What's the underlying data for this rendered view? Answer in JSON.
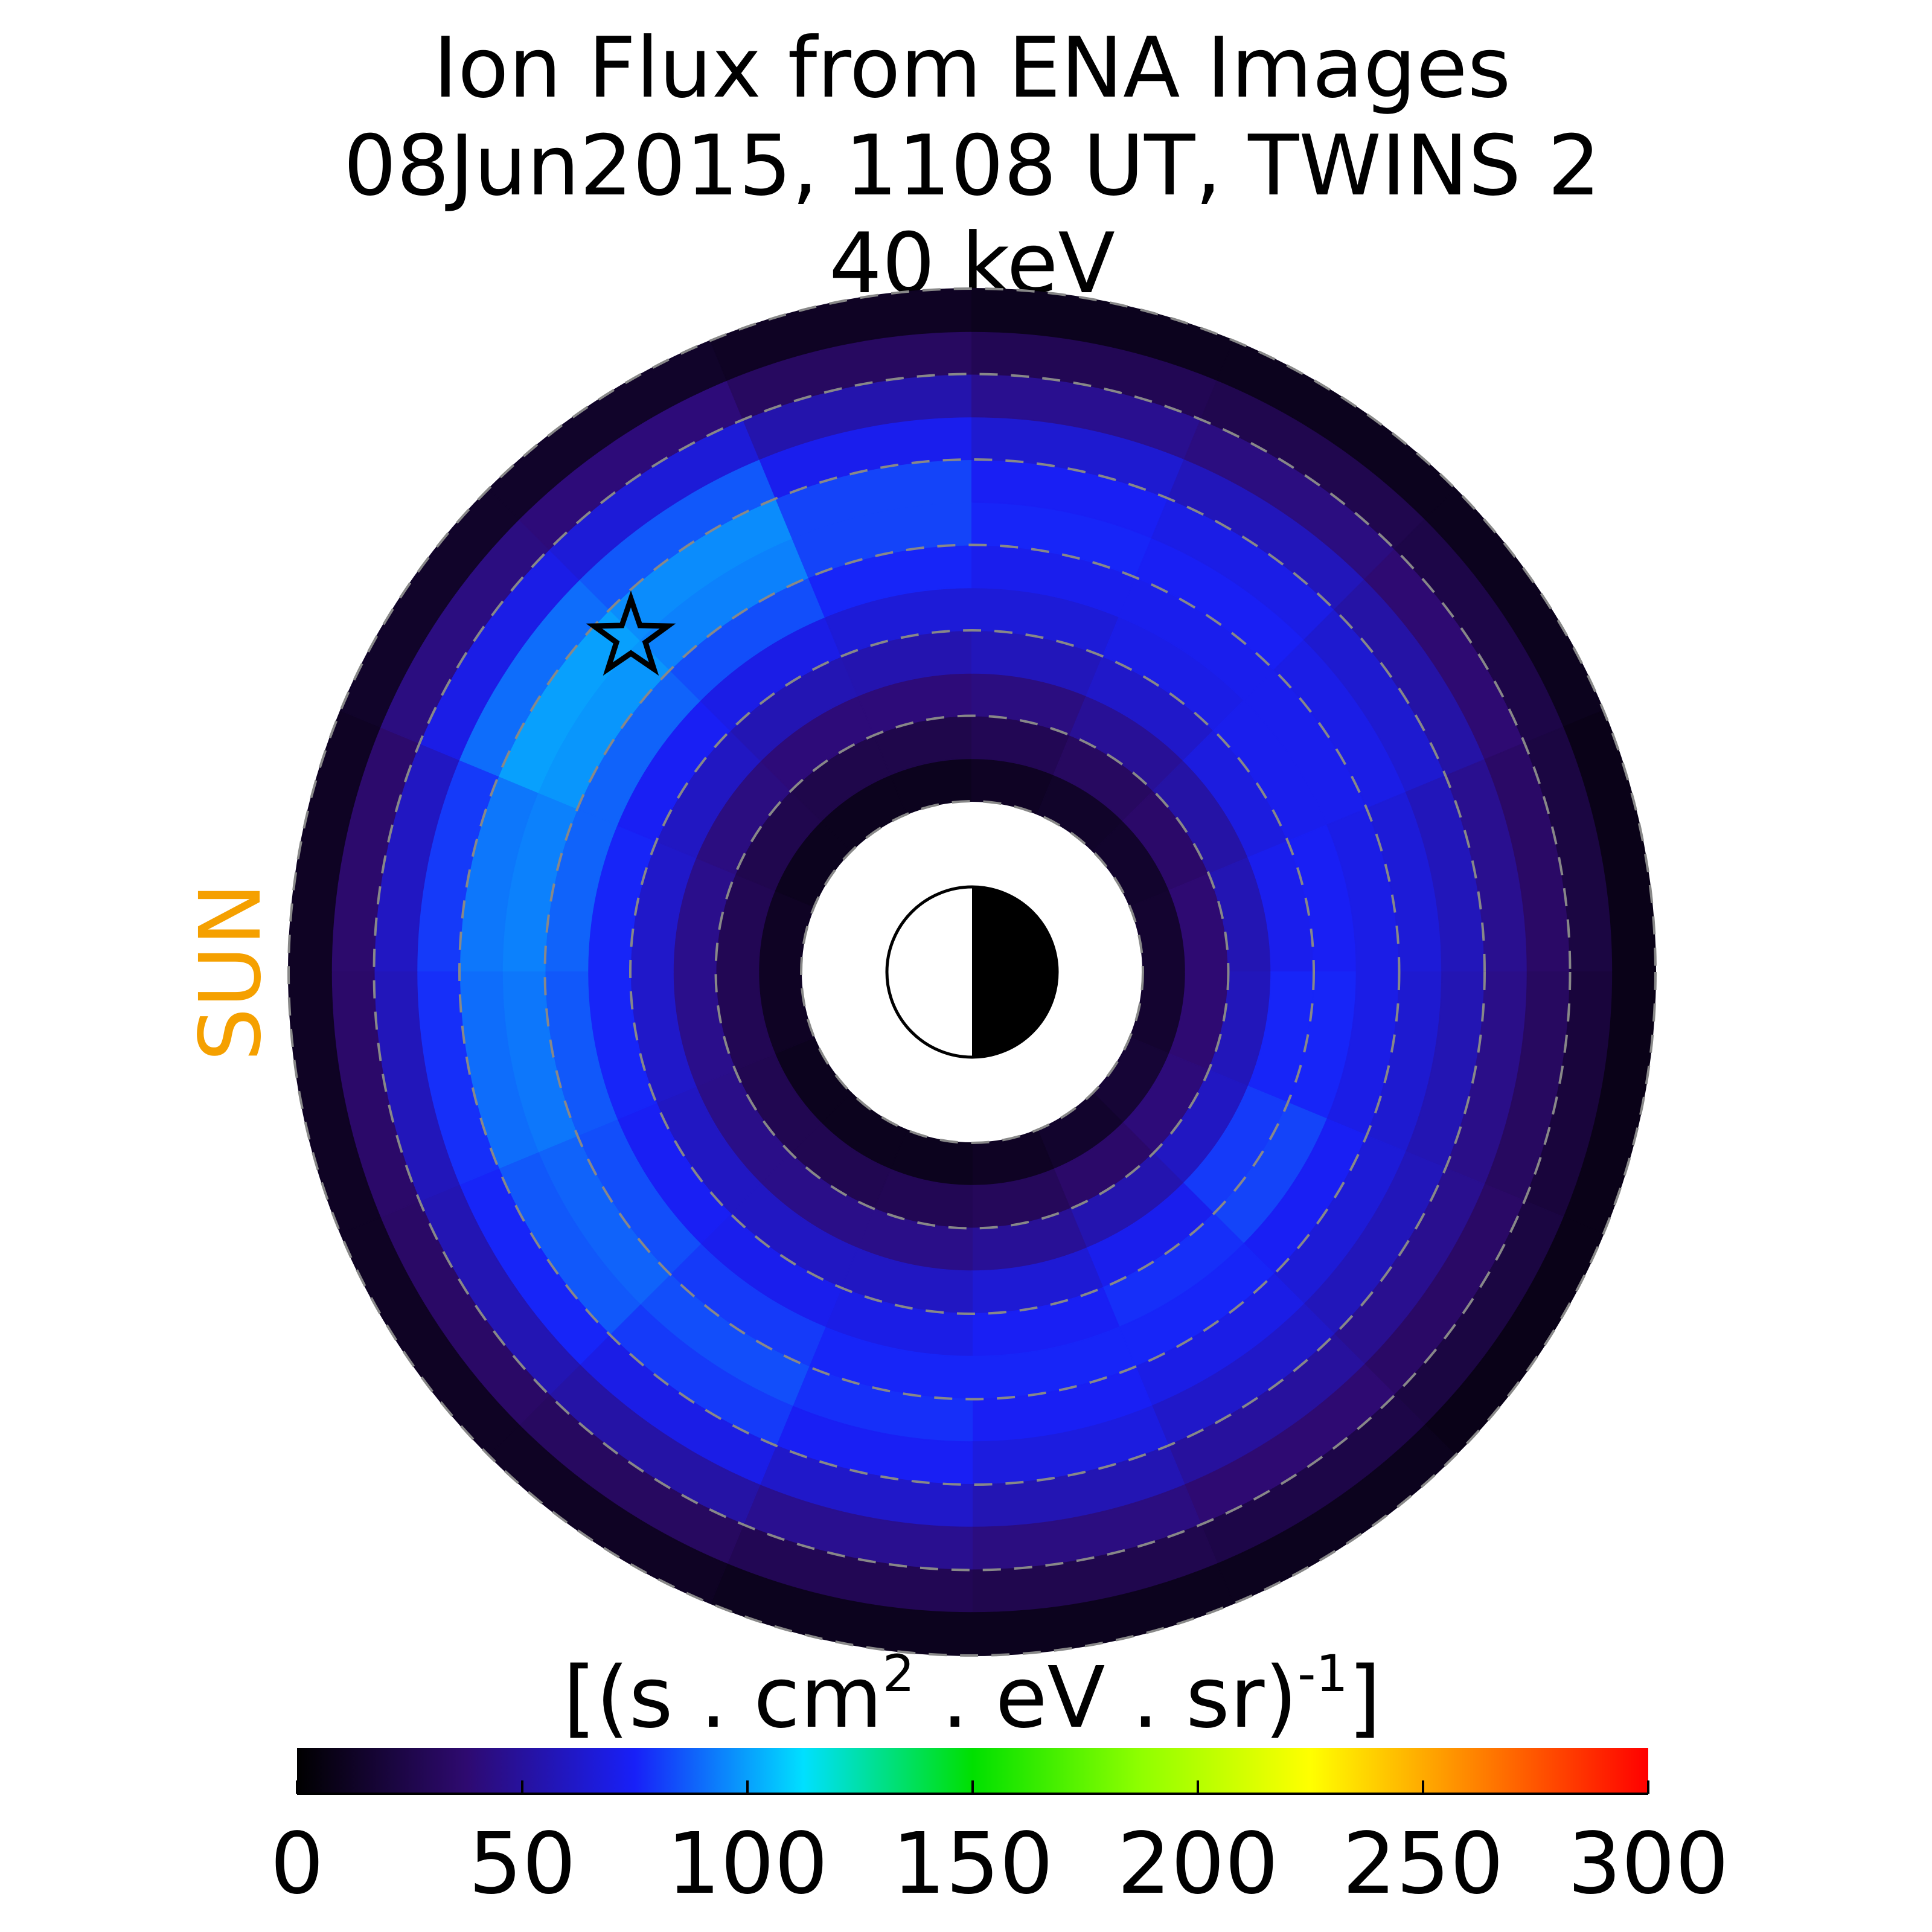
{
  "chart_data": {
    "type": "polar_heatmap",
    "title": [
      "Ion Flux from  ENA Images",
      "08Jun2015, 1108 UT,  TWINS 2",
      "40 keV"
    ],
    "side_label": "SUN",
    "side_label_color": "#f5a000",
    "colorbar_label": [
      "[(s . cm",
      "2",
      "  . eV . sr)",
      "-1",
      "]"
    ],
    "clim": [
      0,
      300
    ],
    "cticks": [
      0,
      50,
      100,
      150,
      200,
      250,
      300
    ],
    "colors": [
      "#000000",
      "#2e0a70",
      "#1820f8",
      "#00e0ff",
      "#00e000",
      "#90ff00",
      "#ffff00",
      "#ff8000",
      "#ff0000"
    ],
    "rlim": [
      0,
      8
    ],
    "rticks": [
      2,
      3,
      4,
      5,
      6,
      7,
      8
    ],
    "grid": true,
    "r_edges": [
      2,
      2.5,
      3,
      3.5,
      4,
      4.5,
      5,
      5.5,
      6,
      6.5,
      7,
      7.5,
      8
    ],
    "angle_edges": [
      0,
      22.5,
      45,
      67.5,
      90,
      112.5,
      135,
      157.5,
      180,
      202.5,
      225,
      247.5,
      270,
      292.5,
      315,
      337.5,
      360
    ],
    "values": [
      [
        12,
        10,
        10,
        10,
        12,
        14,
        15,
        16,
        16,
        18,
        15,
        12,
        10,
        10,
        10,
        12
      ],
      [
        28,
        26,
        25,
        25,
        28,
        32,
        35,
        38,
        38,
        40,
        35,
        30,
        28,
        27,
        27,
        28
      ],
      [
        45,
        42,
        40,
        40,
        42,
        48,
        52,
        56,
        58,
        60,
        55,
        48,
        44,
        44,
        44,
        45
      ],
      [
        62,
        60,
        56,
        55,
        58,
        62,
        68,
        72,
        76,
        80,
        72,
        65,
        60,
        60,
        60,
        62
      ],
      [
        76,
        74,
        70,
        66,
        66,
        70,
        72,
        74,
        76,
        82,
        78,
        74,
        70,
        72,
        74,
        76
      ],
      [
        88,
        88,
        84,
        76,
        72,
        72,
        72,
        70,
        70,
        74,
        76,
        76,
        76,
        80,
        84,
        86
      ],
      [
        94,
        98,
        94,
        82,
        76,
        74,
        70,
        66,
        64,
        66,
        70,
        74,
        78,
        84,
        88,
        92
      ],
      [
        92,
        100,
        96,
        82,
        74,
        70,
        64,
        58,
        56,
        58,
        62,
        68,
        74,
        80,
        86,
        90
      ],
      [
        80,
        90,
        86,
        72,
        64,
        58,
        52,
        46,
        44,
        46,
        50,
        56,
        62,
        70,
        76,
        78
      ],
      [
        60,
        70,
        66,
        54,
        46,
        42,
        38,
        34,
        32,
        34,
        38,
        42,
        46,
        52,
        56,
        58
      ],
      [
        36,
        42,
        40,
        32,
        28,
        26,
        24,
        22,
        20,
        22,
        24,
        26,
        28,
        32,
        34,
        35
      ],
      [
        12,
        14,
        14,
        12,
        10,
        10,
        10,
        8,
        8,
        8,
        10,
        10,
        10,
        12,
        12,
        12
      ]
    ]
  }
}
